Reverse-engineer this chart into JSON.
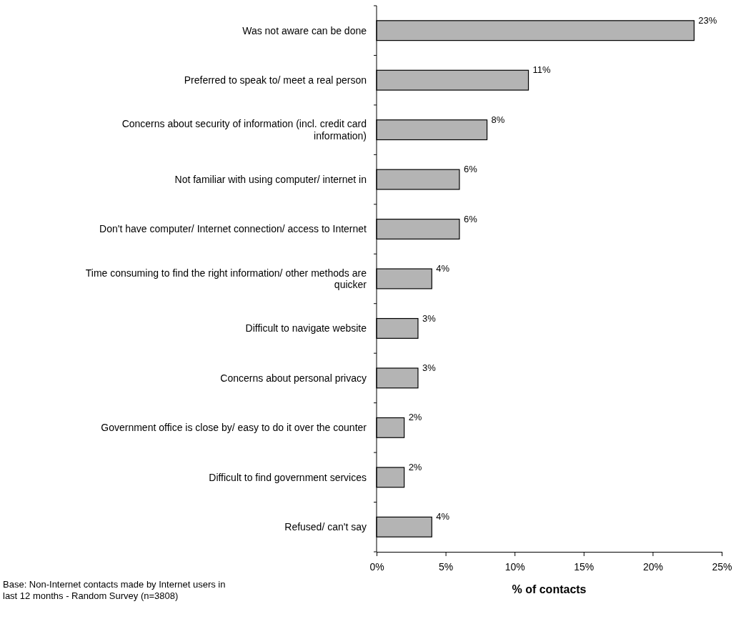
{
  "chart_data": {
    "type": "bar",
    "orientation": "horizontal",
    "xlabel": "% of contacts",
    "categories": [
      "Was not aware can be done",
      "Preferred to speak to/ meet a real person",
      "Concerns about security of information (incl. credit card information)",
      "Not familiar with using computer/ internet in",
      "Don't have computer/ Internet connection/ access to Internet",
      "Time consuming to find the right information/ other methods are quicker",
      "Difficult to navigate website",
      "Concerns about personal privacy",
      "Government office is close by/ easy to do it over the counter",
      "Difficult to find government services",
      "Refused/ can't say"
    ],
    "values": [
      23,
      11,
      8,
      6,
      6,
      4,
      3,
      3,
      2,
      2,
      4
    ],
    "value_labels": [
      "23%",
      "11%",
      "8%",
      "6%",
      "6%",
      "4%",
      "3%",
      "3%",
      "2%",
      "2%",
      "4%"
    ],
    "color": "#b4b4b4",
    "xlim": [
      0,
      25
    ],
    "xticks": [
      {
        "value": 0,
        "label": "0%"
      },
      {
        "value": 5,
        "label": "5%"
      },
      {
        "value": 10,
        "label": "10%"
      },
      {
        "value": 15,
        "label": "15%"
      },
      {
        "value": 20,
        "label": "20%"
      },
      {
        "value": 25,
        "label": "25%"
      }
    ],
    "annotations": [
      "Base: Non-Internet contacts made by Internet users in last 12 months - Random Survey (n=3808)"
    ]
  }
}
